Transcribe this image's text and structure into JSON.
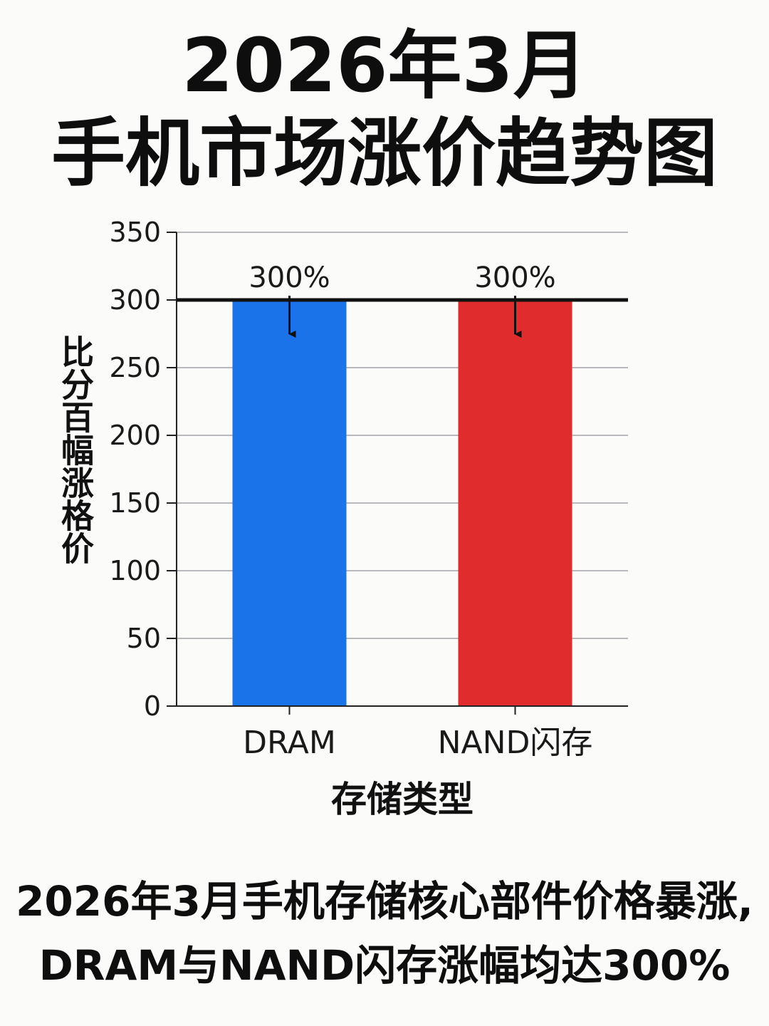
{
  "title": {
    "line1": "2026年3月",
    "line2": "手机市场涨价趋势图"
  },
  "chart_data": {
    "type": "bar",
    "categories": [
      "DRAM",
      "NAND闪存"
    ],
    "values": [
      300,
      300
    ],
    "data_labels": [
      "300%",
      "300%"
    ],
    "colors": [
      "#1a73e8",
      "#e02c2c"
    ],
    "xlabel": "存储类型",
    "ylabel": "价格涨幅百分比",
    "ylabel_display": "比分百幅涨格价",
    "ylim": [
      0,
      350
    ],
    "yticks": [
      0,
      50,
      100,
      150,
      200,
      250,
      300,
      350
    ],
    "reference_line": 300,
    "grid": true,
    "legend": "none"
  },
  "caption": {
    "line1": "2026年3月手机存储核心部件价格暴涨,",
    "line2": "DRAM与NAND闪存涨幅均达300%"
  }
}
